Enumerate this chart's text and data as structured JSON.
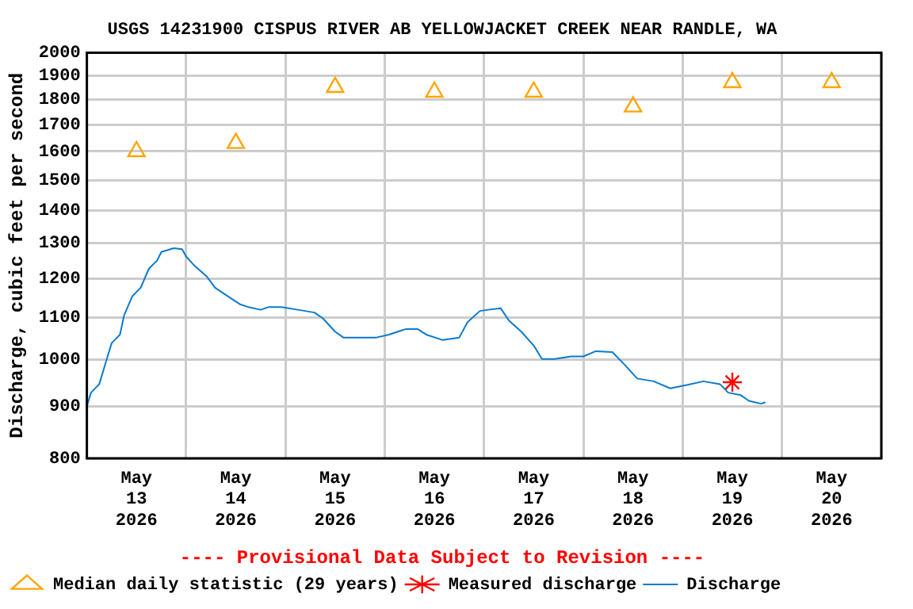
{
  "chart_data": {
    "type": "line",
    "title": "USGS 14231900 CISPUS RIVER AB YELLOWJACKET CREEK NEAR RANDLE, WA",
    "ylabel": "Discharge, cubic feet per second",
    "annotations": [
      "---- Provisional Data Subject to Revision ----"
    ],
    "xlim": [
      "2026-05-13T00:00",
      "2026-05-21T00:00"
    ],
    "xticks": [
      {
        "value": "2026-05-13T00:00",
        "label": null
      },
      {
        "value": "2026-05-13T12:00",
        "label": "May 13 2026"
      },
      {
        "value": "2026-05-14T00:00",
        "label": null
      },
      {
        "value": "2026-05-14T12:00",
        "label": "May 14 2026"
      },
      {
        "value": "2026-05-15T00:00",
        "label": null
      },
      {
        "value": "2026-05-15T12:00",
        "label": "May 15 2026"
      },
      {
        "value": "2026-05-16T00:00",
        "label": null
      },
      {
        "value": "2026-05-16T12:00",
        "label": "May 16 2026"
      },
      {
        "value": "2026-05-17T00:00",
        "label": null
      },
      {
        "value": "2026-05-17T12:00",
        "label": "May 17 2026"
      },
      {
        "value": "2026-05-18T00:00",
        "label": null
      },
      {
        "value": "2026-05-18T12:00",
        "label": "May 18 2026"
      },
      {
        "value": "2026-05-19T00:00",
        "label": null
      },
      {
        "value": "2026-05-19T12:00",
        "label": "May 19 2026"
      },
      {
        "value": "2026-05-20T00:00",
        "label": null
      },
      {
        "value": "2026-05-20T12:00",
        "label": "May 20 2026"
      },
      {
        "value": "2026-05-21T00:00",
        "label": null
      }
    ],
    "ylim": [
      800,
      2000
    ],
    "yticks": [
      800,
      900,
      1000,
      1100,
      1200,
      1300,
      1400,
      1500,
      1600,
      1700,
      1800,
      1900,
      2000
    ],
    "log": "y",
    "grid": true,
    "legend": "bottom",
    "series": [
      {
        "name": "Median daily statistic (29 years)",
        "type": "scatter",
        "marker": "triangle",
        "color": "#ffa500",
        "x": [
          "2026-05-13T12:00",
          "2026-05-14T12:00",
          "2026-05-15T12:00",
          "2026-05-16T12:00",
          "2026-05-17T12:00",
          "2026-05-18T12:00",
          "2026-05-19T12:00",
          "2026-05-20T12:00"
        ],
        "values": [
          1600,
          1630,
          1850,
          1830,
          1830,
          1770,
          1870,
          1870
        ]
      },
      {
        "name": "Measured discharge",
        "type": "scatter",
        "marker": "cross",
        "color": "#ff0000",
        "x": [
          "2026-05-19T12:00"
        ],
        "values": [
          950
        ]
      },
      {
        "name": "Discharge",
        "marker": "none",
        "line_style": "solid",
        "color": "#0a7ad0",
        "x": [
          "2026-05-13T00:00",
          "2026-05-13T01:00",
          "2026-05-13T03:00",
          "2026-05-13T05:00",
          "2026-05-13T06:00",
          "2026-05-13T08:00",
          "2026-05-13T09:00",
          "2026-05-13T11:00",
          "2026-05-13T13:00",
          "2026-05-13T15:00",
          "2026-05-13T17:00",
          "2026-05-13T18:00",
          "2026-05-13T21:00",
          "2026-05-13T23:00",
          "2026-05-14T00:00",
          "2026-05-14T02:00",
          "2026-05-14T05:00",
          "2026-05-14T07:00",
          "2026-05-14T10:00",
          "2026-05-14T13:00",
          "2026-05-14T15:00",
          "2026-05-14T18:00",
          "2026-05-14T20:00",
          "2026-05-14T23:00",
          "2026-05-15T03:00",
          "2026-05-15T07:00",
          "2026-05-15T09:00",
          "2026-05-15T12:00",
          "2026-05-15T14:00",
          "2026-05-15T18:00",
          "2026-05-15T22:00",
          "2026-05-16T01:00",
          "2026-05-16T05:00",
          "2026-05-16T08:00",
          "2026-05-16T10:00",
          "2026-05-16T14:00",
          "2026-05-16T18:00",
          "2026-05-16T20:00",
          "2026-05-16T23:00",
          "2026-05-17T01:00",
          "2026-05-17T04:00",
          "2026-05-17T06:00",
          "2026-05-17T09:00",
          "2026-05-17T12:00",
          "2026-05-17T14:00",
          "2026-05-17T17:00",
          "2026-05-17T21:00",
          "2026-05-18T00:00",
          "2026-05-18T03:00",
          "2026-05-18T07:00",
          "2026-05-18T10:00",
          "2026-05-18T13:00",
          "2026-05-18T17:00",
          "2026-05-18T21:00",
          "2026-05-19T01:00",
          "2026-05-19T05:00",
          "2026-05-19T09:00",
          "2026-05-19T11:00",
          "2026-05-19T14:00",
          "2026-05-19T16:00",
          "2026-05-19T19:00",
          "2026-05-19T20:00"
        ],
        "values": [
          900,
          928,
          946,
          1007,
          1038,
          1058,
          1105,
          1154,
          1176,
          1228,
          1251,
          1275,
          1286,
          1283,
          1262,
          1236,
          1206,
          1176,
          1154,
          1133,
          1126,
          1119,
          1126,
          1126,
          1119,
          1112,
          1098,
          1065,
          1051,
          1051,
          1051,
          1058,
          1071,
          1071,
          1058,
          1045,
          1051,
          1088,
          1116,
          1119,
          1123,
          1092,
          1065,
          1032,
          1001,
          1001,
          1007,
          1007,
          1019,
          1017,
          988,
          958,
          952,
          937,
          944,
          952,
          946,
          928,
          923,
          911,
          905,
          908
        ]
      }
    ]
  }
}
